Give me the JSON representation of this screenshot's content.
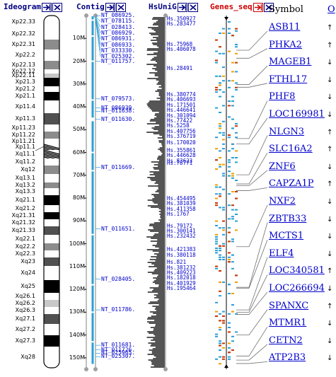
{
  "headers": {
    "ideogram": "Ideogram",
    "contig": "Contig",
    "hsunig": "HsUniG",
    "genes_seq": "Genes_seq",
    "symbol": "Symbol",
    "orientation": "O"
  },
  "colors": {
    "navy": "#000080",
    "link": "#0000cc",
    "red": "#cc0000",
    "cyan": "#2a9fd6"
  },
  "bands": [
    {
      "name": "Xp22.33",
      "stain": "gneg"
    },
    {
      "name": "Xp22.32",
      "stain": "gneg"
    },
    {
      "name": "Xp22.31",
      "stain": "gpos50"
    },
    {
      "name": "Xp22.2",
      "stain": "gneg"
    },
    {
      "name": "Xp22.13",
      "stain": "gpos50"
    },
    {
      "name": "Xp22.12",
      "stain": "gneg"
    },
    {
      "name": "Xp22.11",
      "stain": "gpos25"
    },
    {
      "name": "Xp21.3",
      "stain": "gpos100"
    },
    {
      "name": "Xp21.2",
      "stain": "gneg"
    },
    {
      "name": "Xp21.1",
      "stain": "gpos100"
    },
    {
      "name": "Xp11.4",
      "stain": "gneg"
    },
    {
      "name": "Xp11.3",
      "stain": "gpos75"
    },
    {
      "name": "Xp11.23",
      "stain": "gneg"
    },
    {
      "name": "Xp11.22",
      "stain": "gpos50"
    },
    {
      "name": "Xp11.21",
      "stain": "gneg"
    },
    {
      "name": "Xp11.1",
      "stain": "acen"
    },
    {
      "name": "Xq11.1",
      "stain": "acen"
    },
    {
      "name": "Xq11.2",
      "stain": "gneg"
    },
    {
      "name": "Xq12",
      "stain": "gpos50"
    },
    {
      "name": "Xq13.1",
      "stain": "gneg"
    },
    {
      "name": "Xq13.2",
      "stain": "gpos50"
    },
    {
      "name": "Xq13.3",
      "stain": "gneg"
    },
    {
      "name": "Xq21.1",
      "stain": "gpos100"
    },
    {
      "name": "Xq21.2",
      "stain": "gneg"
    },
    {
      "name": "Xq21.31",
      "stain": "gpos100"
    },
    {
      "name": "Xq21.32",
      "stain": "gneg"
    },
    {
      "name": "Xq21.33",
      "stain": "gpos75"
    },
    {
      "name": "Xq22.1",
      "stain": "gneg"
    },
    {
      "name": "Xq22.2",
      "stain": "gpos50"
    },
    {
      "name": "Xq22.3",
      "stain": "gneg"
    },
    {
      "name": "Xq23",
      "stain": "gpos75"
    },
    {
      "name": "Xq24",
      "stain": "gneg"
    },
    {
      "name": "Xq25",
      "stain": "gpos100"
    },
    {
      "name": "Xq26.1",
      "stain": "gneg"
    },
    {
      "name": "Xq26.2",
      "stain": "gpos25"
    },
    {
      "name": "Xq26.3",
      "stain": "gneg"
    },
    {
      "name": "Xq27.1",
      "stain": "gpos75"
    },
    {
      "name": "Xq27.2",
      "stain": "gneg"
    },
    {
      "name": "Xq27.3",
      "stain": "gpos100"
    },
    {
      "name": "Xq28",
      "stain": "gneg"
    }
  ],
  "scale_mb": [
    10,
    20,
    30,
    40,
    50,
    60,
    70,
    80,
    90,
    100,
    110,
    120,
    130,
    140,
    150
  ],
  "scale_suffix": "M",
  "contigs_top": [
    "NT_086925.",
    "NT_078115.",
    "NT_028413.",
    "NT_086929.",
    "NT_086931.",
    "NT_086933.",
    "NT_033330.",
    "NT_025302."
  ],
  "contigs": [
    {
      "label": "NT_011757.",
      "mb": 20
    },
    {
      "label": "NT_079573.",
      "mb": 36.5
    },
    {
      "label": "NT_086939.",
      "mb": 40.5
    },
    {
      "label": "NT_011638.",
      "mb": 42
    },
    {
      "label": "NT_011630.",
      "mb": 45.5
    },
    {
      "label": "NT_011669.",
      "mb": 66.5
    },
    {
      "label": "NT_011651.",
      "mb": 93.5
    },
    {
      "label": "NT_028405.",
      "mb": 115.5
    },
    {
      "label": "NT_011786.",
      "mb": 129
    },
    {
      "label": "NT_011681.",
      "mb": 144.5
    },
    {
      "label": "NT_011726.",
      "mb": 146.5
    },
    {
      "label": "NT_025965.",
      "mb": 148
    },
    {
      "label": "NT_025307.",
      "mb": 149.5
    }
  ],
  "hs_groups": [
    {
      "mb": 0.2,
      "items": [
        "Hs.350927",
        "Hs.283477"
      ]
    },
    {
      "mb": 11.5,
      "items": [
        "Hs.75968",
        "Hs.406078"
      ]
    },
    {
      "mb": 22,
      "items": [
        "Hs.28491"
      ]
    },
    {
      "mb": 33.5,
      "items": [
        "Hs.380774",
        "Hs.406693",
        "Hs.171501",
        "Hs.446641",
        "Hs.301094",
        "Hs.77422",
        "Hs.5258",
        "Hs.407756",
        "Hs.376719"
      ]
    },
    {
      "mb": 54.5,
      "items": [
        "Hs.170020"
      ]
    },
    {
      "mb": 58,
      "items": [
        "Hs.355861",
        "Hs.446628",
        "Hs.83623"
      ]
    },
    {
      "mb": 63.5,
      "items": [
        "Hs.78771"
      ]
    },
    {
      "mb": 79,
      "items": [
        "Hs.454495",
        "Hs.381039",
        "Hs.411358",
        "Hs.1767"
      ]
    },
    {
      "mb": 91,
      "items": [
        "Hs.79172",
        "Hs.300141",
        "Hs.232432"
      ]
    },
    {
      "mb": 101.5,
      "items": [
        "Hs.421383",
        "Hs.380118"
      ]
    },
    {
      "mb": 107,
      "items": [
        "Hs.821",
        "Hs.381232",
        "Hs.409223",
        "Hs.182018",
        "Hs.401929",
        "Hs.195464"
      ]
    }
  ],
  "genes": [
    {
      "symbol": "ASB11",
      "strand": "↑",
      "mb": 15.2
    },
    {
      "symbol": "PHKA2",
      "strand": "↑",
      "mb": 18.7
    },
    {
      "symbol": "MAGEB1",
      "strand": "↓",
      "mb": 30.2
    },
    {
      "symbol": "FTHL17",
      "strand": "↓",
      "mb": 31.4
    },
    {
      "symbol": "PHF8",
      "strand": "↓",
      "mb": 53.9
    },
    {
      "symbol": "LOC169981",
      "strand": "↓",
      "mb": 56.3
    },
    {
      "symbol": "NLGN3",
      "strand": "↑",
      "mb": 69.8
    },
    {
      "symbol": "SLC16A2",
      "strand": "↑",
      "mb": 73.8
    },
    {
      "symbol": "ZNF6",
      "strand": "↓",
      "mb": 74.6
    },
    {
      "symbol": "CAPZA1P",
      "strand": "↑",
      "mb": 76.7
    },
    {
      "symbol": "NXF2",
      "strand": "↓",
      "mb": 101.3
    },
    {
      "symbol": "ZBTB33",
      "strand": "↓",
      "mb": 119.1
    },
    {
      "symbol": "MCTS1",
      "strand": "↓",
      "mb": 119.5
    },
    {
      "symbol": "ELF4",
      "strand": "↓",
      "mb": 129.0
    },
    {
      "symbol": "LOC340581",
      "strand": "↑",
      "mb": 130.0
    },
    {
      "symbol": "LOC266694",
      "strand": "↓",
      "mb": 131.0
    },
    {
      "symbol": "SPANXC",
      "strand": "↑",
      "mb": 140.0
    },
    {
      "symbol": "MTMR1",
      "strand": "↓",
      "mb": 149.2
    },
    {
      "symbol": "CETN2",
      "strand": "↓",
      "mb": 151.0
    },
    {
      "symbol": "ATP2B3",
      "strand": "↓",
      "mb": 152.5
    }
  ]
}
